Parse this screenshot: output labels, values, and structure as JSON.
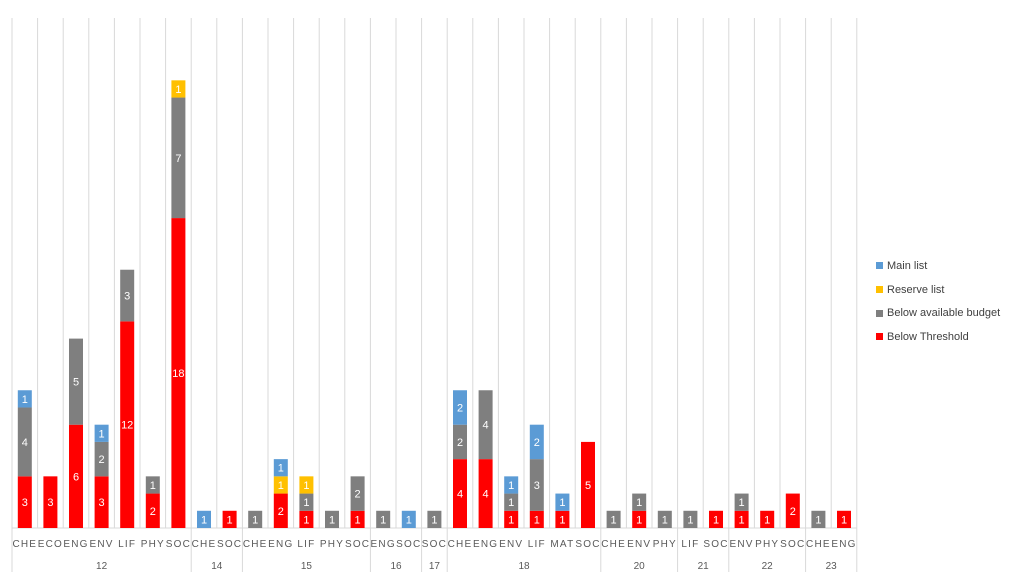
{
  "chart_data": {
    "type": "bar",
    "stacked": true,
    "title": "",
    "xlabel": "",
    "ylabel": "",
    "ylim": [
      0,
      26
    ],
    "grid": "vertical",
    "legend_position": "right",
    "groups": [
      {
        "label": "12",
        "categories": [
          "CHE",
          "ECO",
          "ENG",
          "ENV",
          "LIF",
          "PHY",
          "SOC"
        ]
      },
      {
        "label": "14",
        "categories": [
          "CHE",
          "SOC"
        ]
      },
      {
        "label": "15",
        "categories": [
          "CHE",
          "ENG",
          "LIF",
          "PHY",
          "SOC"
        ]
      },
      {
        "label": "16",
        "categories": [
          "ENG",
          "SOC"
        ]
      },
      {
        "label": "17",
        "categories": [
          "SOC"
        ]
      },
      {
        "label": "18",
        "categories": [
          "CHE",
          "ENG",
          "ENV",
          "LIF",
          "MAT",
          "SOC"
        ]
      },
      {
        "label": "20",
        "categories": [
          "CHE",
          "ENV",
          "PHY"
        ]
      },
      {
        "label": "21",
        "categories": [
          "LIF",
          "SOC"
        ]
      },
      {
        "label": "22",
        "categories": [
          "ENV",
          "PHY",
          "SOC"
        ]
      },
      {
        "label": "23",
        "categories": [
          "CHE",
          "ENG"
        ]
      }
    ],
    "series": [
      {
        "name": "Below Threshold",
        "color": "#ff0000",
        "values": [
          3,
          3,
          6,
          3,
          12,
          2,
          18,
          0,
          1,
          0,
          2,
          1,
          0,
          1,
          0,
          0,
          0,
          4,
          4,
          1,
          1,
          1,
          5,
          0,
          1,
          0,
          0,
          1,
          1,
          1,
          2,
          0,
          1
        ]
      },
      {
        "name": "Below available budget",
        "color": "#7f7f7f",
        "values": [
          4,
          0,
          5,
          2,
          3,
          1,
          7,
          0,
          0,
          1,
          0,
          1,
          1,
          2,
          1,
          0,
          1,
          2,
          4,
          1,
          3,
          0,
          0,
          1,
          1,
          1,
          1,
          0,
          1,
          0,
          0,
          1,
          0
        ]
      },
      {
        "name": "Reserve list",
        "color": "#ffc000",
        "values": [
          0,
          0,
          0,
          0,
          0,
          0,
          1,
          0,
          0,
          0,
          1,
          1,
          0,
          0,
          0,
          0,
          0,
          0,
          0,
          0,
          0,
          0,
          0,
          0,
          0,
          0,
          0,
          0,
          0,
          0,
          0,
          0,
          0
        ]
      },
      {
        "name": "Main list",
        "color": "#5b9bd5",
        "values": [
          1,
          0,
          0,
          1,
          0,
          0,
          0,
          1,
          0,
          0,
          1,
          0,
          0,
          0,
          0,
          1,
          0,
          2,
          0,
          1,
          2,
          1,
          0,
          0,
          0,
          0,
          0,
          0,
          0,
          0,
          0,
          0,
          0
        ]
      }
    ],
    "legend_order": [
      "Main list",
      "Reserve list",
      "Below available budget",
      "Below Threshold"
    ]
  }
}
